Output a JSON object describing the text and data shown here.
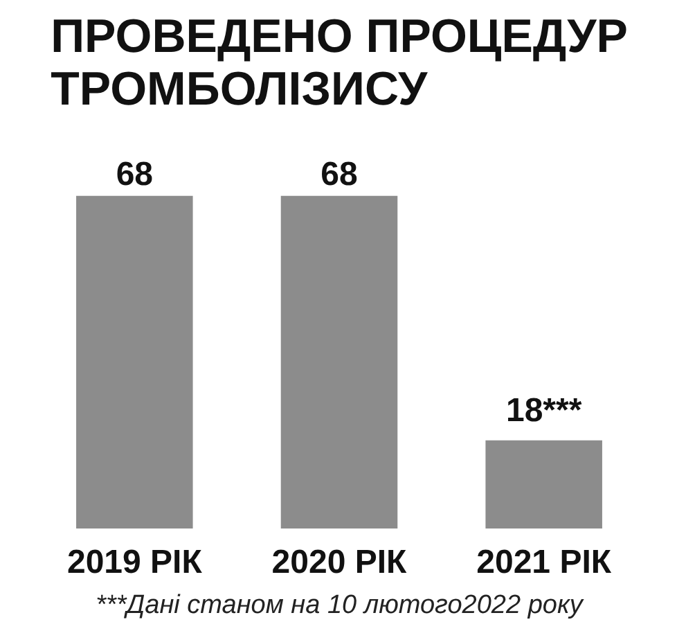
{
  "chart_data": {
    "type": "bar",
    "title": "ПРОВЕДЕНО ПРОЦЕДУР\nТРОМБОЛІЗИСУ",
    "categories": [
      "2019 РІК",
      "2020 РІК",
      "2021 РІК"
    ],
    "values": [
      68,
      68,
      18
    ],
    "value_labels": [
      "68",
      "68",
      "18***"
    ],
    "tick_labels": "x",
    "color": "#8c8c8c",
    "grid": false,
    "annotations": [
      "***Дані станом на 10 лютого2022 року"
    ]
  }
}
